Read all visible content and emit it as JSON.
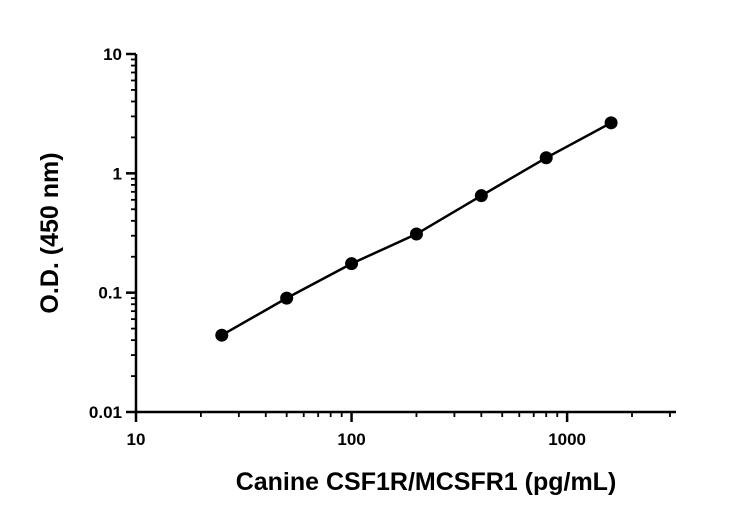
{
  "chart_data": {
    "type": "scatter",
    "title": "",
    "xlabel": "Canine CSF1R/MCSFR1 (pg/mL)",
    "ylabel": "O.D. (450 nm)",
    "xscale": "log",
    "yscale": "log",
    "xlim": [
      10,
      3200
    ],
    "ylim": [
      0.01,
      10
    ],
    "x_ticks": [
      {
        "value": 10,
        "label": "10"
      },
      {
        "value": 100,
        "label": "100"
      },
      {
        "value": 1000,
        "label": "1000"
      }
    ],
    "y_ticks": [
      {
        "value": 0.01,
        "label": "0.01"
      },
      {
        "value": 0.1,
        "label": "0.1"
      },
      {
        "value": 1,
        "label": "1"
      },
      {
        "value": 10,
        "label": "10"
      }
    ],
    "grid": false,
    "legend": "none",
    "series": [
      {
        "x": [
          25,
          50,
          100,
          200,
          400,
          800,
          1600
        ],
        "y": [
          0.044,
          0.09,
          0.175,
          0.31,
          0.65,
          1.35,
          2.65
        ],
        "marker": "circle",
        "color": "#000000",
        "fit_line": true
      }
    ]
  }
}
